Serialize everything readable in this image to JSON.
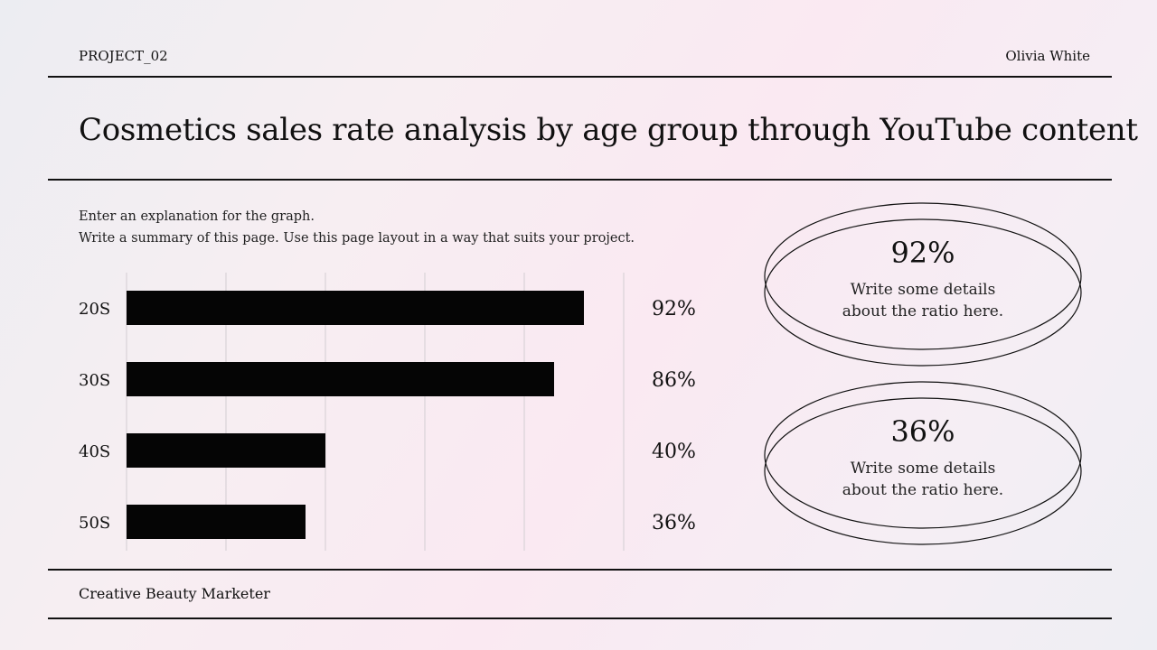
{
  "header": {
    "project_label": "PROJECT_02",
    "author": "Olivia White"
  },
  "title": "Cosmetics sales rate analysis by age group through YouTube content",
  "description": {
    "line1": "Enter an explanation for the graph.",
    "line2": "Write a summary of this page. Use this page layout in a way that suits your project."
  },
  "chart_data": {
    "type": "bar",
    "orientation": "horizontal",
    "categories": [
      "20S",
      "30S",
      "40S",
      "50S"
    ],
    "values": [
      92,
      86,
      40,
      36
    ],
    "value_labels": [
      "92%",
      "86%",
      "40%",
      "36%"
    ],
    "xlim": [
      0,
      100
    ],
    "grid": true,
    "bar_color": "#050505"
  },
  "highlights": [
    {
      "value": "92%",
      "line1": "Write some details",
      "line2": "about the ratio here."
    },
    {
      "value": "36%",
      "line1": "Write some details",
      "line2": "about the ratio here."
    }
  ],
  "footer": {
    "text": "Creative Beauty Marketer"
  }
}
